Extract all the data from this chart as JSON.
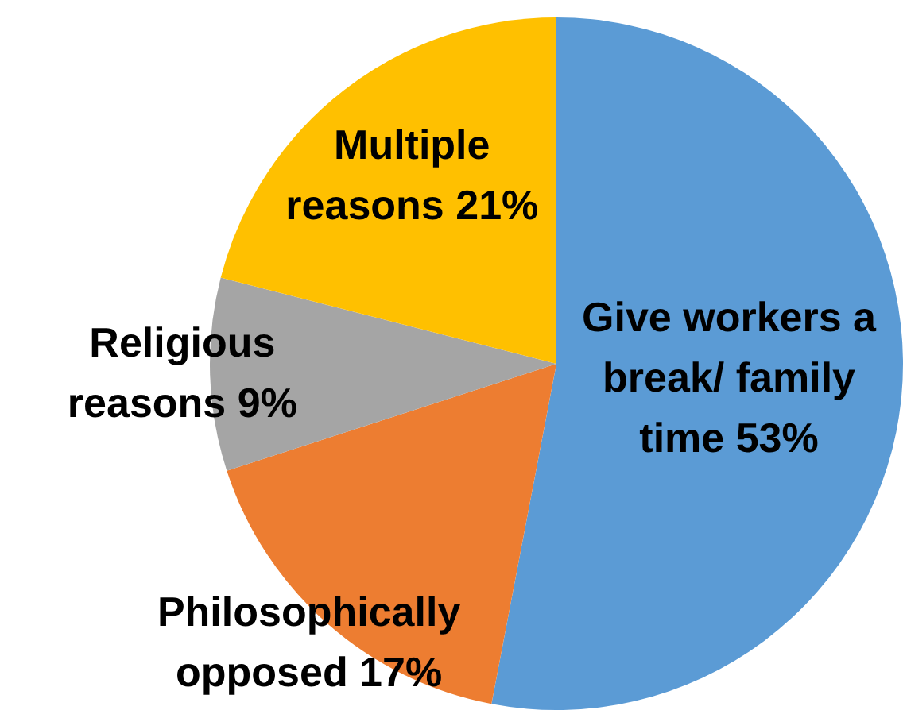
{
  "chart_data": {
    "type": "pie",
    "categories": [
      "Give workers a break/ family time",
      "Philosophically opposed",
      "Religious reasons",
      "Multiple reasons"
    ],
    "values": [
      53,
      17,
      9,
      21
    ],
    "colors": [
      "#5b9bd5",
      "#ed7d31",
      "#a5a5a5",
      "#ffc000"
    ],
    "value_labels": [
      "53%",
      "17%",
      "9%",
      "21%"
    ]
  }
}
